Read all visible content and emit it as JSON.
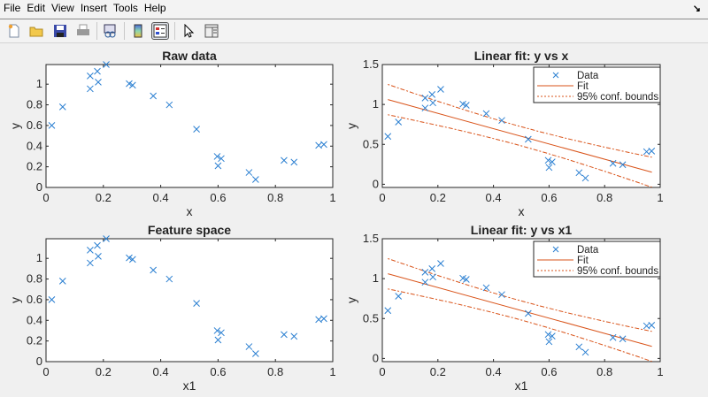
{
  "menu": [
    "File",
    "Edit",
    "View",
    "Insert",
    "Tools",
    "Help"
  ],
  "toolbar": {
    "icons": [
      "new-figure-icon",
      "open-file-icon",
      "save-icon",
      "print-icon",
      "link-plot-icon",
      "colorbar-icon",
      "legend-icon",
      "pointer-icon",
      "property-inspector-icon"
    ]
  },
  "colors": {
    "data": "#2a7fd1",
    "fit": "#d95319",
    "axis": "#262626"
  },
  "chart_data": [
    {
      "type": "scatter",
      "title": "Raw data",
      "xlabel": "x",
      "ylabel": "y",
      "xlim": [
        0,
        1
      ],
      "ylim": [
        0,
        1.19
      ],
      "xticks": [
        "0",
        "0.2",
        "0.4",
        "0.6",
        "0.8",
        "1"
      ],
      "yticks": [
        "0",
        "0.2",
        "0.4",
        "0.6",
        "0.8",
        "1"
      ],
      "series": [
        {
          "name": "Data",
          "marker": "x"
        }
      ]
    },
    {
      "type": "line",
      "title": "Linear fit: y vs x",
      "xlabel": "x",
      "ylabel": "y",
      "xlim": [
        0,
        1
      ],
      "ylim": [
        -0.04,
        1.5
      ],
      "xticks": [
        "0",
        "0.2",
        "0.4",
        "0.6",
        "0.8",
        "1"
      ],
      "yticks": [
        "0",
        "0.5",
        "1",
        "1.5"
      ],
      "legend": {
        "position": "top-right",
        "entries": [
          "Data",
          "Fit",
          "95% conf. bounds"
        ]
      },
      "fit": {
        "intercept": 1.08,
        "slope": -0.958,
        "x_range": [
          0.02,
          0.97
        ]
      },
      "bounds_halfwidth": {
        "center": 0.12,
        "ends": 0.19
      }
    },
    {
      "type": "scatter",
      "title": "Feature space",
      "xlabel": "x1",
      "ylabel": "y",
      "xlim": [
        0,
        1
      ],
      "ylim": [
        0,
        1.19
      ],
      "xticks": [
        "0",
        "0.2",
        "0.4",
        "0.6",
        "0.8",
        "1"
      ],
      "yticks": [
        "0",
        "0.2",
        "0.4",
        "0.6",
        "0.8",
        "1"
      ],
      "series": [
        {
          "name": "Data",
          "marker": "x"
        }
      ]
    },
    {
      "type": "line",
      "title": "Linear fit: y vs x1",
      "xlabel": "x1",
      "ylabel": "y",
      "xlim": [
        0,
        1
      ],
      "ylim": [
        -0.04,
        1.5
      ],
      "xticks": [
        "0",
        "0.2",
        "0.4",
        "0.6",
        "0.8",
        "1"
      ],
      "yticks": [
        "0",
        "0.5",
        "1",
        "1.5"
      ],
      "legend": {
        "position": "top-right",
        "entries": [
          "Data",
          "Fit",
          "95% conf. bounds"
        ]
      },
      "fit": {
        "intercept": 1.08,
        "slope": -0.958,
        "x_range": [
          0.02,
          0.97
        ]
      },
      "bounds_halfwidth": {
        "center": 0.12,
        "ends": 0.19
      }
    }
  ],
  "points": {
    "x": [
      0.02,
      0.058,
      0.154,
      0.154,
      0.179,
      0.182,
      0.21,
      0.29,
      0.302,
      0.374,
      0.43,
      0.525,
      0.597,
      0.6,
      0.611,
      0.708,
      0.731,
      0.83,
      0.865,
      0.951,
      0.969
    ],
    "y": [
      0.6,
      0.78,
      1.08,
      0.955,
      1.125,
      1.02,
      1.19,
      1.005,
      0.99,
      0.886,
      0.8,
      0.564,
      0.3,
      0.21,
      0.28,
      0.145,
      0.077,
      0.262,
      0.245,
      0.408,
      0.416
    ]
  }
}
